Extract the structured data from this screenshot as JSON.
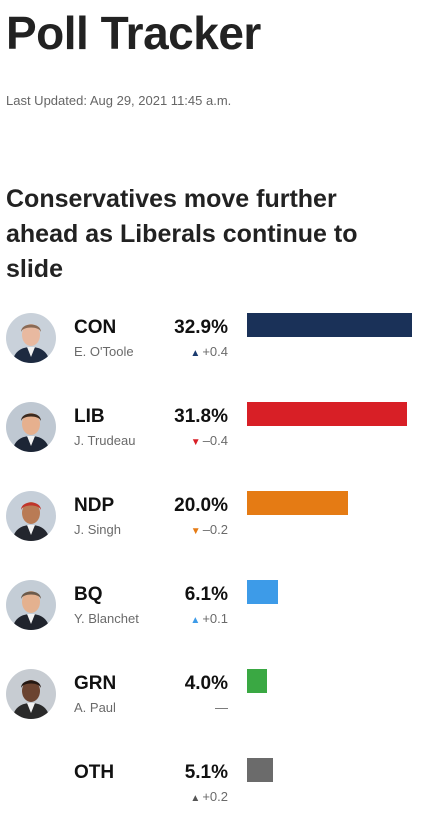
{
  "page": {
    "title": "Poll Tracker",
    "updated": "Last Updated: Aug 29, 2021 11:45 a.m.",
    "headline": "Conservatives move further ahead as Liberals continue to slide"
  },
  "colors": {
    "arrow_up": "#1a3a6e",
    "arrow_down": "#d81f26",
    "arrow_ndp": "#e57b14",
    "arrow_bq": "#3d9be8",
    "arrow_oth": "#555555"
  },
  "chart_data": {
    "type": "bar",
    "orientation": "horizontal",
    "unit": "%",
    "categories": [
      "CON",
      "LIB",
      "NDP",
      "BQ",
      "GRN",
      "OTH"
    ],
    "values": [
      32.9,
      31.8,
      20.0,
      6.1,
      4.0,
      5.1
    ],
    "xlim": [
      0,
      33
    ]
  },
  "rows": [
    {
      "party": "CON",
      "leader": "E. O'Toole",
      "pct": "32.9%",
      "value": 32.9,
      "change": "+0.4",
      "dir": "up",
      "color": "#1a3158",
      "arrow_color": "#1a3a6e",
      "photo": "otoole-photo"
    },
    {
      "party": "LIB",
      "leader": "J. Trudeau",
      "pct": "31.8%",
      "value": 31.8,
      "change": "–0.4",
      "dir": "down",
      "color": "#d81f26",
      "arrow_color": "#d81f26",
      "photo": "trudeau-photo"
    },
    {
      "party": "NDP",
      "leader": "J. Singh",
      "pct": "20.0%",
      "value": 20.0,
      "change": "–0.2",
      "dir": "down",
      "color": "#e57b14",
      "arrow_color": "#e57b14",
      "photo": "singh-photo"
    },
    {
      "party": "BQ",
      "leader": "Y. Blanchet",
      "pct": "6.1%",
      "value": 6.1,
      "change": "+0.1",
      "dir": "up",
      "color": "#3d9be8",
      "arrow_color": "#3d9be8",
      "photo": "blanchet-photo"
    },
    {
      "party": "GRN",
      "leader": "A. Paul",
      "pct": "4.0%",
      "value": 4.0,
      "change": "—",
      "dir": "none",
      "color": "#3aa843",
      "arrow_color": "#555555",
      "photo": "paul-photo"
    },
    {
      "party": "OTH",
      "leader": "",
      "pct": "5.1%",
      "value": 5.1,
      "change": "+0.2",
      "dir": "up",
      "color": "#6b6b6b",
      "arrow_color": "#555555",
      "photo": ""
    }
  ]
}
